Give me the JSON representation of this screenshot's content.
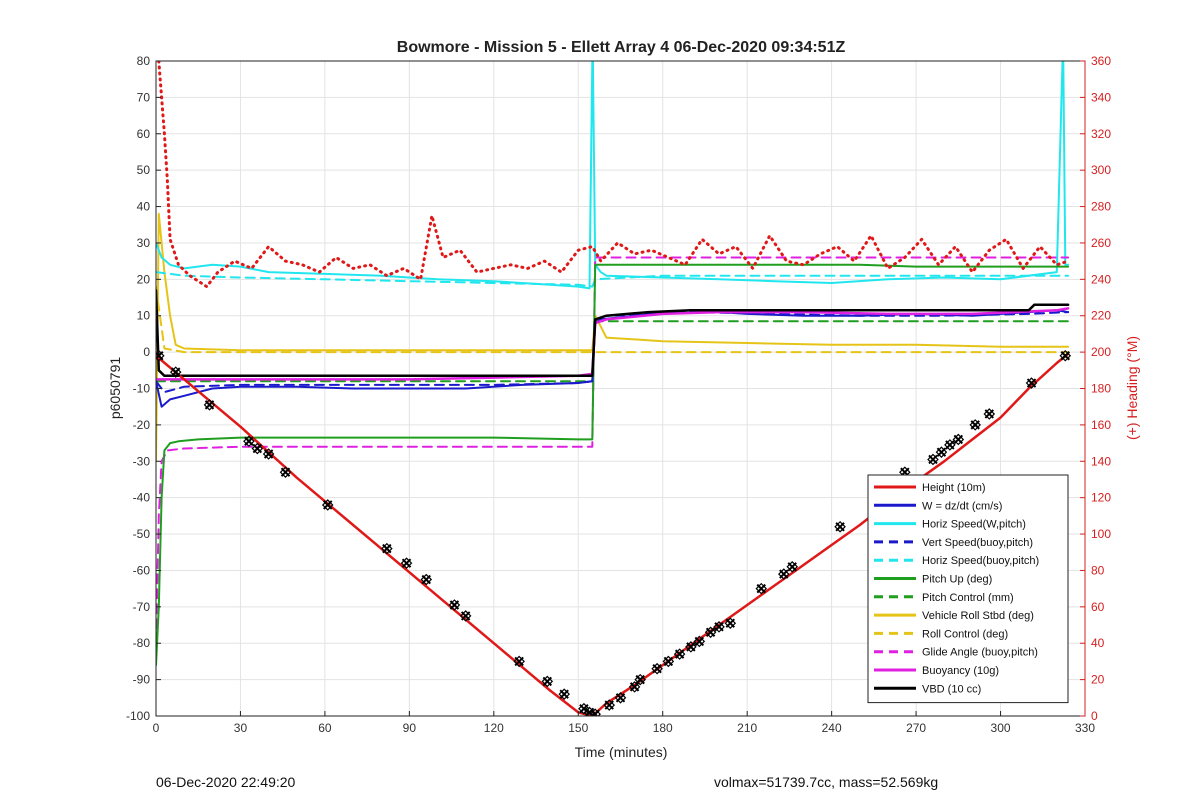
{
  "chart_data": {
    "type": "line",
    "title": "Bowmore - Mission 5 - Ellett Array 4 06-Dec-2020 09:34:51Z",
    "xlabel": "Time (minutes)",
    "ylabel": "p6050791",
    "ylabel_right": "(+) Heading (°M)",
    "xlim": [
      0,
      330
    ],
    "ylim": [
      -100,
      80
    ],
    "ylim_right": [
      0,
      360
    ],
    "x_ticks": [
      0,
      30,
      60,
      90,
      120,
      150,
      180,
      210,
      240,
      270,
      300,
      330
    ],
    "y_ticks": [
      -100,
      -90,
      -80,
      -70,
      -60,
      -50,
      -40,
      -30,
      -20,
      -10,
      0,
      10,
      20,
      30,
      40,
      50,
      60,
      70,
      80
    ],
    "y_ticks_right": [
      0,
      20,
      40,
      60,
      80,
      100,
      120,
      140,
      160,
      180,
      200,
      220,
      240,
      260,
      280,
      300,
      320,
      340,
      360
    ],
    "grid": true,
    "legend_position": "bottom-right",
    "series": [
      {
        "name": "Height (10m)",
        "axis": "left",
        "color": "#e01818",
        "dash": "solid",
        "width": 2.5,
        "x": [
          0,
          10,
          20,
          30,
          40,
          50,
          60,
          70,
          80,
          90,
          100,
          110,
          120,
          130,
          140,
          150,
          155,
          160,
          170,
          180,
          190,
          200,
          210,
          220,
          230,
          240,
          250,
          260,
          270,
          280,
          290,
          300,
          310,
          320,
          324
        ],
        "y": [
          -1,
          -7.5,
          -14,
          -20.5,
          -27.5,
          -34.5,
          -41,
          -47.5,
          -54,
          -60.5,
          -67,
          -73.5,
          -80,
          -86.5,
          -93,
          -99,
          -100,
          -96.5,
          -91.5,
          -86,
          -80.5,
          -75,
          -69.5,
          -64,
          -58.5,
          -53,
          -47.5,
          -41.5,
          -35.5,
          -30,
          -24,
          -18,
          -10,
          -3,
          -0.5
        ]
      },
      {
        "name": "W = dz/dt (cm/s)",
        "axis": "left",
        "color": "#1a1acc",
        "dash": "solid",
        "width": 2,
        "x": [
          0,
          2,
          5,
          10,
          20,
          30,
          50,
          70,
          90,
          110,
          130,
          150,
          155,
          156,
          158,
          170,
          190,
          210,
          230,
          250,
          270,
          290,
          310,
          320,
          324
        ],
        "y": [
          -8,
          -15,
          -13,
          -12,
          -10,
          -9.5,
          -9.5,
          -10,
          -10,
          -10,
          -9,
          -8.5,
          -8,
          8,
          9,
          10,
          11.5,
          10.5,
          10,
          10,
          10.5,
          10,
          11,
          11.5,
          11
        ]
      },
      {
        "name": "Horiz Speed(W,pitch)",
        "axis": "left",
        "color": "#22e6ee",
        "dash": "solid",
        "width": 2,
        "x": [
          0,
          2,
          5,
          10,
          20,
          30,
          40,
          60,
          80,
          100,
          120,
          140,
          150,
          154,
          155,
          155.2,
          156,
          158,
          160,
          180,
          200,
          220,
          240,
          260,
          280,
          300,
          320,
          322,
          322.3,
          323,
          324
        ],
        "y": [
          30,
          26,
          24,
          23,
          24,
          23.5,
          22,
          21.5,
          21,
          20,
          19.5,
          18.5,
          18,
          17.5,
          80,
          80,
          24,
          22,
          21,
          20.5,
          20,
          19.5,
          19,
          20,
          20.5,
          20,
          22,
          80,
          80,
          24,
          24
        ]
      },
      {
        "name": "Vert Speed(buoy,pitch)",
        "axis": "left",
        "color": "#1a1acc",
        "dash": "dash",
        "width": 2,
        "x": [
          0,
          3,
          10,
          30,
          60,
          90,
          120,
          150,
          155,
          156,
          160,
          190,
          220,
          250,
          280,
          310,
          324
        ],
        "y": [
          -8,
          -11,
          -9.5,
          -9,
          -9,
          -9,
          -9,
          -8.5,
          -8,
          9,
          10,
          11,
          10.5,
          10,
          10,
          10.5,
          11
        ]
      },
      {
        "name": "Horiz Speed(buoy,pitch)",
        "axis": "left",
        "color": "#22e6ee",
        "dash": "dash",
        "width": 2,
        "x": [
          0,
          10,
          30,
          60,
          90,
          120,
          150,
          155,
          156,
          180,
          210,
          240,
          270,
          300,
          324
        ],
        "y": [
          22,
          21,
          20.5,
          20,
          19.5,
          19,
          18.5,
          18,
          20,
          21,
          21,
          21,
          21,
          21,
          21
        ]
      },
      {
        "name": "Pitch Up (deg)",
        "axis": "left",
        "color": "#1f9e1f",
        "dash": "solid",
        "width": 2,
        "x": [
          0,
          1,
          2,
          3,
          5,
          8,
          15,
          30,
          60,
          90,
          120,
          150,
          155,
          156,
          158,
          170,
          190,
          210,
          230,
          250,
          270,
          290,
          310,
          324
        ],
        "y": [
          -86,
          -70,
          -40,
          -27,
          -25,
          -24.5,
          -24,
          -23.5,
          -23.5,
          -23.5,
          -23.5,
          -24,
          -24,
          24,
          24,
          24,
          24,
          24,
          24,
          24,
          23.5,
          23.5,
          23.5,
          23.5
        ]
      },
      {
        "name": "Pitch Control (mm)",
        "axis": "left",
        "color": "#1f9e1f",
        "dash": "dash",
        "width": 2,
        "x": [
          0,
          5,
          30,
          60,
          90,
          120,
          150,
          155,
          156,
          180,
          210,
          240,
          270,
          300,
          324
        ],
        "y": [
          -8,
          -8,
          -8,
          -8,
          -8,
          -8,
          -8,
          -8,
          8.5,
          8.5,
          8.5,
          8.5,
          8.5,
          8.5,
          8.5
        ]
      },
      {
        "name": "Vehicle Roll Stbd (deg)",
        "axis": "left",
        "color": "#e6c417",
        "dash": "solid",
        "width": 2,
        "x": [
          0,
          1,
          3,
          5,
          7,
          10,
          30,
          60,
          90,
          120,
          150,
          155,
          156,
          160,
          180,
          210,
          240,
          270,
          300,
          324
        ],
        "y": [
          -30,
          38,
          22,
          10,
          2,
          1,
          0.5,
          0.5,
          0.5,
          0.5,
          0.5,
          0.5,
          10,
          4,
          3,
          2.5,
          2,
          2,
          1.5,
          1.5
        ]
      },
      {
        "name": "Roll Control (deg)",
        "axis": "left",
        "color": "#e6c417",
        "dash": "dash",
        "width": 2,
        "x": [
          0,
          3,
          10,
          40,
          70,
          100,
          130,
          150,
          155,
          156,
          180,
          210,
          240,
          270,
          300,
          324
        ],
        "y": [
          18,
          1,
          0,
          0,
          0,
          0,
          0,
          0,
          0,
          0,
          0,
          0,
          0,
          0,
          0,
          0
        ]
      },
      {
        "name": "Glide Angle (buoy,pitch)",
        "axis": "left",
        "color": "#e020e0",
        "dash": "dash",
        "width": 2,
        "x": [
          0,
          1,
          2,
          4,
          10,
          30,
          60,
          90,
          120,
          150,
          155,
          156,
          160,
          190,
          220,
          250,
          280,
          310,
          324
        ],
        "y": [
          -80,
          -45,
          -30,
          -27,
          -26.5,
          -26,
          -26,
          -26,
          -26,
          -26,
          -26,
          26,
          26,
          26,
          26,
          26,
          26,
          26,
          26
        ]
      },
      {
        "name": "Buoyancy (10g)",
        "axis": "left",
        "color": "#e020e0",
        "dash": "solid",
        "width": 2.5,
        "x": [
          0,
          5,
          30,
          60,
          90,
          120,
          150,
          155,
          156,
          160,
          180,
          200,
          230,
          260,
          290,
          320,
          324
        ],
        "y": [
          -7.5,
          -7.5,
          -7.5,
          -7.5,
          -7.5,
          -7,
          -6.5,
          -6,
          8,
          9,
          10.5,
          11,
          11,
          10.5,
          10.5,
          11.5,
          12
        ]
      },
      {
        "name": "VBD (10 cc)",
        "axis": "left",
        "color": "#000000",
        "dash": "solid",
        "width": 2.5,
        "x": [
          0,
          1,
          3,
          5,
          20,
          60,
          100,
          140,
          155,
          156,
          160,
          175,
          190,
          210,
          240,
          270,
          300,
          310,
          312,
          324
        ],
        "y": [
          17,
          -5,
          -6.5,
          -6.5,
          -6.5,
          -6.5,
          -6.5,
          -6.5,
          -6.5,
          9,
          10,
          11,
          11.5,
          11.5,
          11.5,
          11.5,
          11.5,
          11.5,
          13,
          13
        ]
      },
      {
        "name": "Heading",
        "axis": "right",
        "color": "#e01818",
        "dash": "dot",
        "width": 3,
        "x": [
          1,
          2,
          3,
          4,
          5,
          8,
          12,
          18,
          22,
          28,
          34,
          40,
          46,
          52,
          58,
          64,
          70,
          76,
          82,
          88,
          94,
          98,
          102,
          108,
          114,
          120,
          126,
          132,
          138,
          144,
          150,
          155,
          158,
          164,
          170,
          176,
          182,
          188,
          194,
          200,
          206,
          212,
          218,
          224,
          230,
          236,
          242,
          248,
          254,
          260,
          266,
          272,
          278,
          284,
          290,
          296,
          302,
          308,
          314,
          320,
          324
        ],
        "y": [
          360,
          340,
          320,
          295,
          262,
          248,
          242,
          236,
          244,
          250,
          246,
          258,
          250,
          248,
          244,
          252,
          246,
          248,
          242,
          246,
          240,
          275,
          252,
          256,
          244,
          246,
          248,
          246,
          250,
          244,
          256,
          258,
          250,
          260,
          254,
          256,
          252,
          248,
          262,
          254,
          258,
          246,
          264,
          250,
          248,
          254,
          258,
          250,
          264,
          246,
          252,
          262,
          248,
          258,
          244,
          256,
          262,
          246,
          258,
          248,
          250
        ]
      }
    ],
    "markers": {
      "name": "dive markers",
      "color": "#000000",
      "x": [
        1,
        7,
        19,
        33,
        36,
        40,
        46,
        61,
        82,
        89,
        96,
        106,
        110,
        129,
        139,
        145,
        152,
        154,
        156,
        161,
        165,
        170,
        172,
        178,
        182,
        186,
        190,
        193,
        197,
        200,
        204,
        215,
        223,
        226,
        243,
        259,
        266,
        276,
        279,
        282,
        285,
        291,
        296,
        311,
        323
      ],
      "y": [
        -1,
        -5.5,
        -14.5,
        -24.5,
        -26.5,
        -28,
        -33,
        -42,
        -54,
        -58,
        -62.5,
        -69.5,
        -72.5,
        -85,
        -90.5,
        -94,
        -98,
        -99,
        -99.5,
        -97,
        -95,
        -92,
        -90,
        -87,
        -85,
        -83,
        -81,
        -79.5,
        -77,
        -75.5,
        -74.5,
        -65,
        -61,
        -59,
        -48,
        -38,
        -33,
        -29.5,
        -27.5,
        -25.5,
        -24,
        -20,
        -17,
        -8.5,
        -1
      ]
    }
  },
  "footer": {
    "timestamp": "06-Dec-2020 22:49:20",
    "stats": "volmax=51739.7cc, mass=52.569kg"
  }
}
